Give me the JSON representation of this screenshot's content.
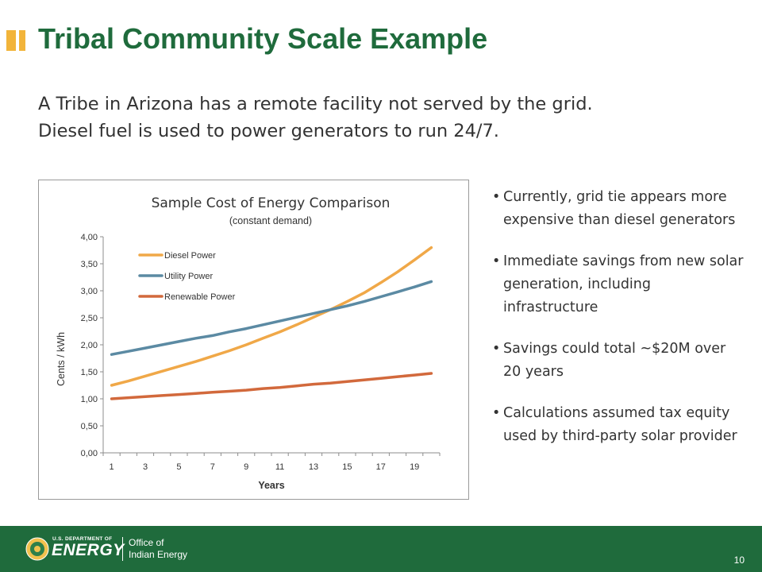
{
  "slide": {
    "title": "Tribal Community Scale Example",
    "intro_lines": [
      "A Tribe in Arizona has a remote facility not served by the grid.",
      "Diesel fuel is used to power generators to run 24/7."
    ],
    "bullets": [
      "Currently, grid tie appears more expensive than diesel generators",
      "Immediate savings from new solar generation, including infrastructure",
      "Savings could total ~$20M over 20 years",
      "Calculations assumed tax equity used by third-party solar provider"
    ],
    "page_number": "10"
  },
  "footer": {
    "doe_small": "U.S. DEPARTMENT OF",
    "doe_big": "ENERGY",
    "office_line1": "Office of",
    "office_line2": "Indian Energy"
  },
  "colors": {
    "title_green": "#1f6b3c",
    "accent_yellow": "#f2b43a",
    "diesel": "#f0a848",
    "utility": "#5b8aa3",
    "renewable": "#d2693c"
  },
  "chart_data": {
    "type": "line",
    "title": "Sample Cost of Energy  Comparison",
    "subtitle": "(constant demand)",
    "xlabel": "Years",
    "ylabel": "Cents / kWh",
    "x": [
      1,
      2,
      3,
      4,
      5,
      6,
      7,
      8,
      9,
      10,
      11,
      12,
      13,
      14,
      15,
      16,
      17,
      18,
      19,
      20
    ],
    "x_tick_labels": [
      "1",
      "3",
      "5",
      "7",
      "9",
      "11",
      "13",
      "15",
      "17",
      "19"
    ],
    "y_tick_labels": [
      "0,00",
      "0,50",
      "1,00",
      "1,50",
      "2,00",
      "2,50",
      "3,00",
      "3,50",
      "4,00"
    ],
    "ylim": [
      0,
      4
    ],
    "legend_position": "top-left",
    "grid": false,
    "series": [
      {
        "name": "Diesel Power",
        "color": "#f0a848",
        "values": [
          1.25,
          1.33,
          1.42,
          1.51,
          1.6,
          1.69,
          1.79,
          1.89,
          2.0,
          2.12,
          2.24,
          2.37,
          2.51,
          2.65,
          2.8,
          2.96,
          3.15,
          3.35,
          3.57,
          3.8
        ]
      },
      {
        "name": "Utility Power",
        "color": "#5b8aa3",
        "values": [
          1.82,
          1.88,
          1.94,
          2.0,
          2.06,
          2.12,
          2.17,
          2.24,
          2.3,
          2.37,
          2.44,
          2.51,
          2.58,
          2.65,
          2.72,
          2.8,
          2.89,
          2.98,
          3.07,
          3.17
        ]
      },
      {
        "name": "Renewable Power",
        "color": "#d2693c",
        "values": [
          1.0,
          1.02,
          1.04,
          1.06,
          1.08,
          1.1,
          1.12,
          1.14,
          1.16,
          1.19,
          1.21,
          1.24,
          1.27,
          1.29,
          1.32,
          1.35,
          1.38,
          1.41,
          1.44,
          1.47
        ]
      }
    ]
  }
}
